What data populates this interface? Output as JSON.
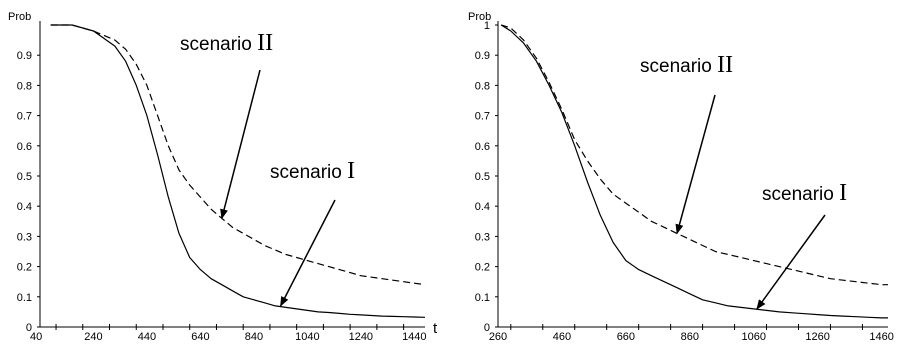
{
  "chart_data": [
    {
      "type": "line",
      "ylabel": "Prob",
      "xlabel": "t",
      "xlim": [
        40,
        1480
      ],
      "ylim": [
        0,
        1
      ],
      "x_tick_labels": [
        {
          "v": 40,
          "t": "40"
        },
        {
          "v": 240,
          "t": "240"
        },
        {
          "v": 440,
          "t": "440"
        },
        {
          "v": 640,
          "t": "640"
        },
        {
          "v": 840,
          "t": "840"
        },
        {
          "v": 1040,
          "t": "1040"
        },
        {
          "v": 1240,
          "t": "1240"
        },
        {
          "v": 1440,
          "t": "1440"
        }
      ],
      "y_tick_labels": [
        {
          "v": 0,
          "t": "0"
        },
        {
          "v": 0.1,
          "t": "0.1"
        },
        {
          "v": 0.2,
          "t": "0.2"
        },
        {
          "v": 0.3,
          "t": "0.3"
        },
        {
          "v": 0.4,
          "t": "0.4"
        },
        {
          "v": 0.5,
          "t": "0.5"
        },
        {
          "v": 0.6,
          "t": "0.6"
        },
        {
          "v": 0.7,
          "t": "0.7"
        },
        {
          "v": 0.8,
          "t": "0.8"
        },
        {
          "v": 0.9,
          "t": "0.9"
        }
      ],
      "series": [
        {
          "style": "dashed",
          "x": [
            80,
            160,
            240,
            320,
            360,
            400,
            440,
            480,
            520,
            560,
            600,
            640,
            680,
            720,
            760,
            800,
            840,
            880,
            920,
            960,
            1000,
            1040,
            1080,
            1120,
            1160,
            1200,
            1240,
            1280,
            1320,
            1360,
            1400,
            1440,
            1480
          ],
          "y": [
            1.0,
            1.0,
            0.98,
            0.95,
            0.92,
            0.87,
            0.8,
            0.7,
            0.6,
            0.52,
            0.47,
            0.43,
            0.39,
            0.36,
            0.33,
            0.31,
            0.29,
            0.27,
            0.255,
            0.24,
            0.23,
            0.22,
            0.21,
            0.2,
            0.19,
            0.18,
            0.17,
            0.165,
            0.16,
            0.155,
            0.15,
            0.145,
            0.14
          ]
        },
        {
          "style": "solid",
          "x": [
            80,
            160,
            240,
            320,
            360,
            400,
            440,
            480,
            520,
            560,
            600,
            640,
            680,
            720,
            760,
            800,
            840,
            880,
            920,
            960,
            1000,
            1040,
            1080,
            1120,
            1160,
            1200,
            1240,
            1280,
            1320,
            1360,
            1400,
            1440,
            1480
          ],
          "y": [
            1.0,
            1.0,
            0.98,
            0.93,
            0.88,
            0.8,
            0.7,
            0.57,
            0.43,
            0.31,
            0.23,
            0.19,
            0.16,
            0.14,
            0.12,
            0.1,
            0.09,
            0.08,
            0.07,
            0.065,
            0.06,
            0.055,
            0.05,
            0.048,
            0.045,
            0.042,
            0.04,
            0.038,
            0.036,
            0.035,
            0.034,
            0.033,
            0.032
          ]
        }
      ],
      "annotations": [
        {
          "text": "scenario ",
          "numeral": "II",
          "points_to": {
            "x": 720,
            "y": 0.36
          }
        },
        {
          "text": "scenario ",
          "numeral": "I",
          "points_to": {
            "x": 940,
            "y": 0.07
          }
        }
      ]
    },
    {
      "type": "line",
      "ylabel": "Prob",
      "xlabel": "",
      "xlim": [
        260,
        1480
      ],
      "ylim": [
        0,
        1
      ],
      "x_tick_labels": [
        {
          "v": 260,
          "t": "260"
        },
        {
          "v": 460,
          "t": "460"
        },
        {
          "v": 660,
          "t": "660"
        },
        {
          "v": 860,
          "t": "860"
        },
        {
          "v": 1060,
          "t": "1060"
        },
        {
          "v": 1260,
          "t": "1260"
        },
        {
          "v": 1460,
          "t": "1460"
        }
      ],
      "y_tick_labels": [
        {
          "v": 0,
          "t": "0"
        },
        {
          "v": 0.1,
          "t": "0.1"
        },
        {
          "v": 0.2,
          "t": "0.2"
        },
        {
          "v": 0.3,
          "t": "0.3"
        },
        {
          "v": 0.4,
          "t": "0.4"
        },
        {
          "v": 0.5,
          "t": "0.5"
        },
        {
          "v": 0.6,
          "t": "0.6"
        },
        {
          "v": 0.7,
          "t": "0.7"
        },
        {
          "v": 0.8,
          "t": "0.8"
        },
        {
          "v": 0.9,
          "t": "0.9"
        },
        {
          "v": 1,
          "t": "1"
        }
      ],
      "series": [
        {
          "style": "dashed",
          "x": [
            270,
            300,
            340,
            380,
            420,
            460,
            500,
            540,
            580,
            620,
            660,
            700,
            740,
            780,
            820,
            860,
            900,
            940,
            980,
            1020,
            1060,
            1100,
            1140,
            1180,
            1220,
            1260,
            1300,
            1340,
            1380,
            1420,
            1460,
            1480
          ],
          "y": [
            1.0,
            0.99,
            0.95,
            0.89,
            0.81,
            0.72,
            0.62,
            0.55,
            0.49,
            0.44,
            0.41,
            0.38,
            0.35,
            0.33,
            0.31,
            0.29,
            0.27,
            0.25,
            0.24,
            0.23,
            0.22,
            0.21,
            0.2,
            0.19,
            0.18,
            0.17,
            0.16,
            0.155,
            0.15,
            0.145,
            0.14,
            0.14
          ]
        },
        {
          "style": "solid",
          "x": [
            270,
            300,
            340,
            380,
            420,
            460,
            500,
            540,
            580,
            620,
            660,
            700,
            740,
            780,
            820,
            860,
            900,
            940,
            980,
            1020,
            1060,
            1100,
            1140,
            1180,
            1220,
            1260,
            1300,
            1340,
            1380,
            1420,
            1460,
            1480
          ],
          "y": [
            1.0,
            0.98,
            0.94,
            0.88,
            0.8,
            0.71,
            0.6,
            0.48,
            0.37,
            0.28,
            0.22,
            0.19,
            0.17,
            0.15,
            0.13,
            0.11,
            0.09,
            0.08,
            0.07,
            0.065,
            0.06,
            0.055,
            0.05,
            0.047,
            0.044,
            0.041,
            0.038,
            0.036,
            0.034,
            0.032,
            0.03,
            0.03
          ]
        }
      ],
      "annotations": [
        {
          "text": "scenario ",
          "numeral": "II",
          "points_to": {
            "x": 820,
            "y": 0.31
          }
        },
        {
          "text": "scenario ",
          "numeral": "I",
          "points_to": {
            "x": 1070,
            "y": 0.06
          }
        }
      ]
    }
  ]
}
